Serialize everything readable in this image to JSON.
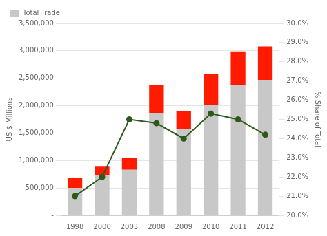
{
  "chart_data": {
    "type": "bar",
    "categories": [
      "1998",
      "2000",
      "2003",
      "2008",
      "2009",
      "2010",
      "2011",
      "2012"
    ],
    "series": [
      {
        "name": "Total Trade",
        "color": "#c8c8c8",
        "values": [
          500000,
          730000,
          830000,
          1870000,
          1570000,
          2020000,
          2380000,
          2470000
        ]
      },
      {
        "color": "#ff1a00",
        "values": [
          180000,
          170000,
          220000,
          500000,
          330000,
          560000,
          610000,
          610000
        ]
      },
      {
        "type": "line",
        "axis": "y2",
        "color": "#2d5a1b",
        "marker": "circle",
        "values": [
          21.0,
          22.0,
          25.0,
          24.8,
          24.0,
          25.3,
          25.0,
          24.2
        ]
      }
    ],
    "stacked": true,
    "ylabel": "US $ Millions",
    "y2label": "% Share of Total",
    "ylim": [
      0,
      3500000
    ],
    "yticks": [
      {
        "value": 0,
        "label": "-"
      },
      {
        "value": 500000,
        "label": "500,000"
      },
      {
        "value": 1000000,
        "label": "1,000,000"
      },
      {
        "value": 1500000,
        "label": "1,500,000"
      },
      {
        "value": 2000000,
        "label": "2,000,000"
      },
      {
        "value": 2500000,
        "label": "2,500,000"
      },
      {
        "value": 3000000,
        "label": "3,000,000"
      },
      {
        "value": 3500000,
        "label": "3,500,000"
      }
    ],
    "y2lim": [
      20.0,
      30.0
    ],
    "y2ticks": [
      {
        "value": 20,
        "label": "20.0%"
      },
      {
        "value": 21,
        "label": "21.0%"
      },
      {
        "value": 22,
        "label": "22.0%"
      },
      {
        "value": 23,
        "label": "23.0%"
      },
      {
        "value": 24,
        "label": "24.0%"
      },
      {
        "value": 25,
        "label": "25.0%"
      },
      {
        "value": 26,
        "label": "26.0%"
      },
      {
        "value": 27,
        "label": "27.0%"
      },
      {
        "value": 28,
        "label": "28.0%"
      },
      {
        "value": 29,
        "label": "29.0%"
      },
      {
        "value": 30,
        "label": "30.0%"
      }
    ],
    "grid": true,
    "legend": "upper left"
  }
}
